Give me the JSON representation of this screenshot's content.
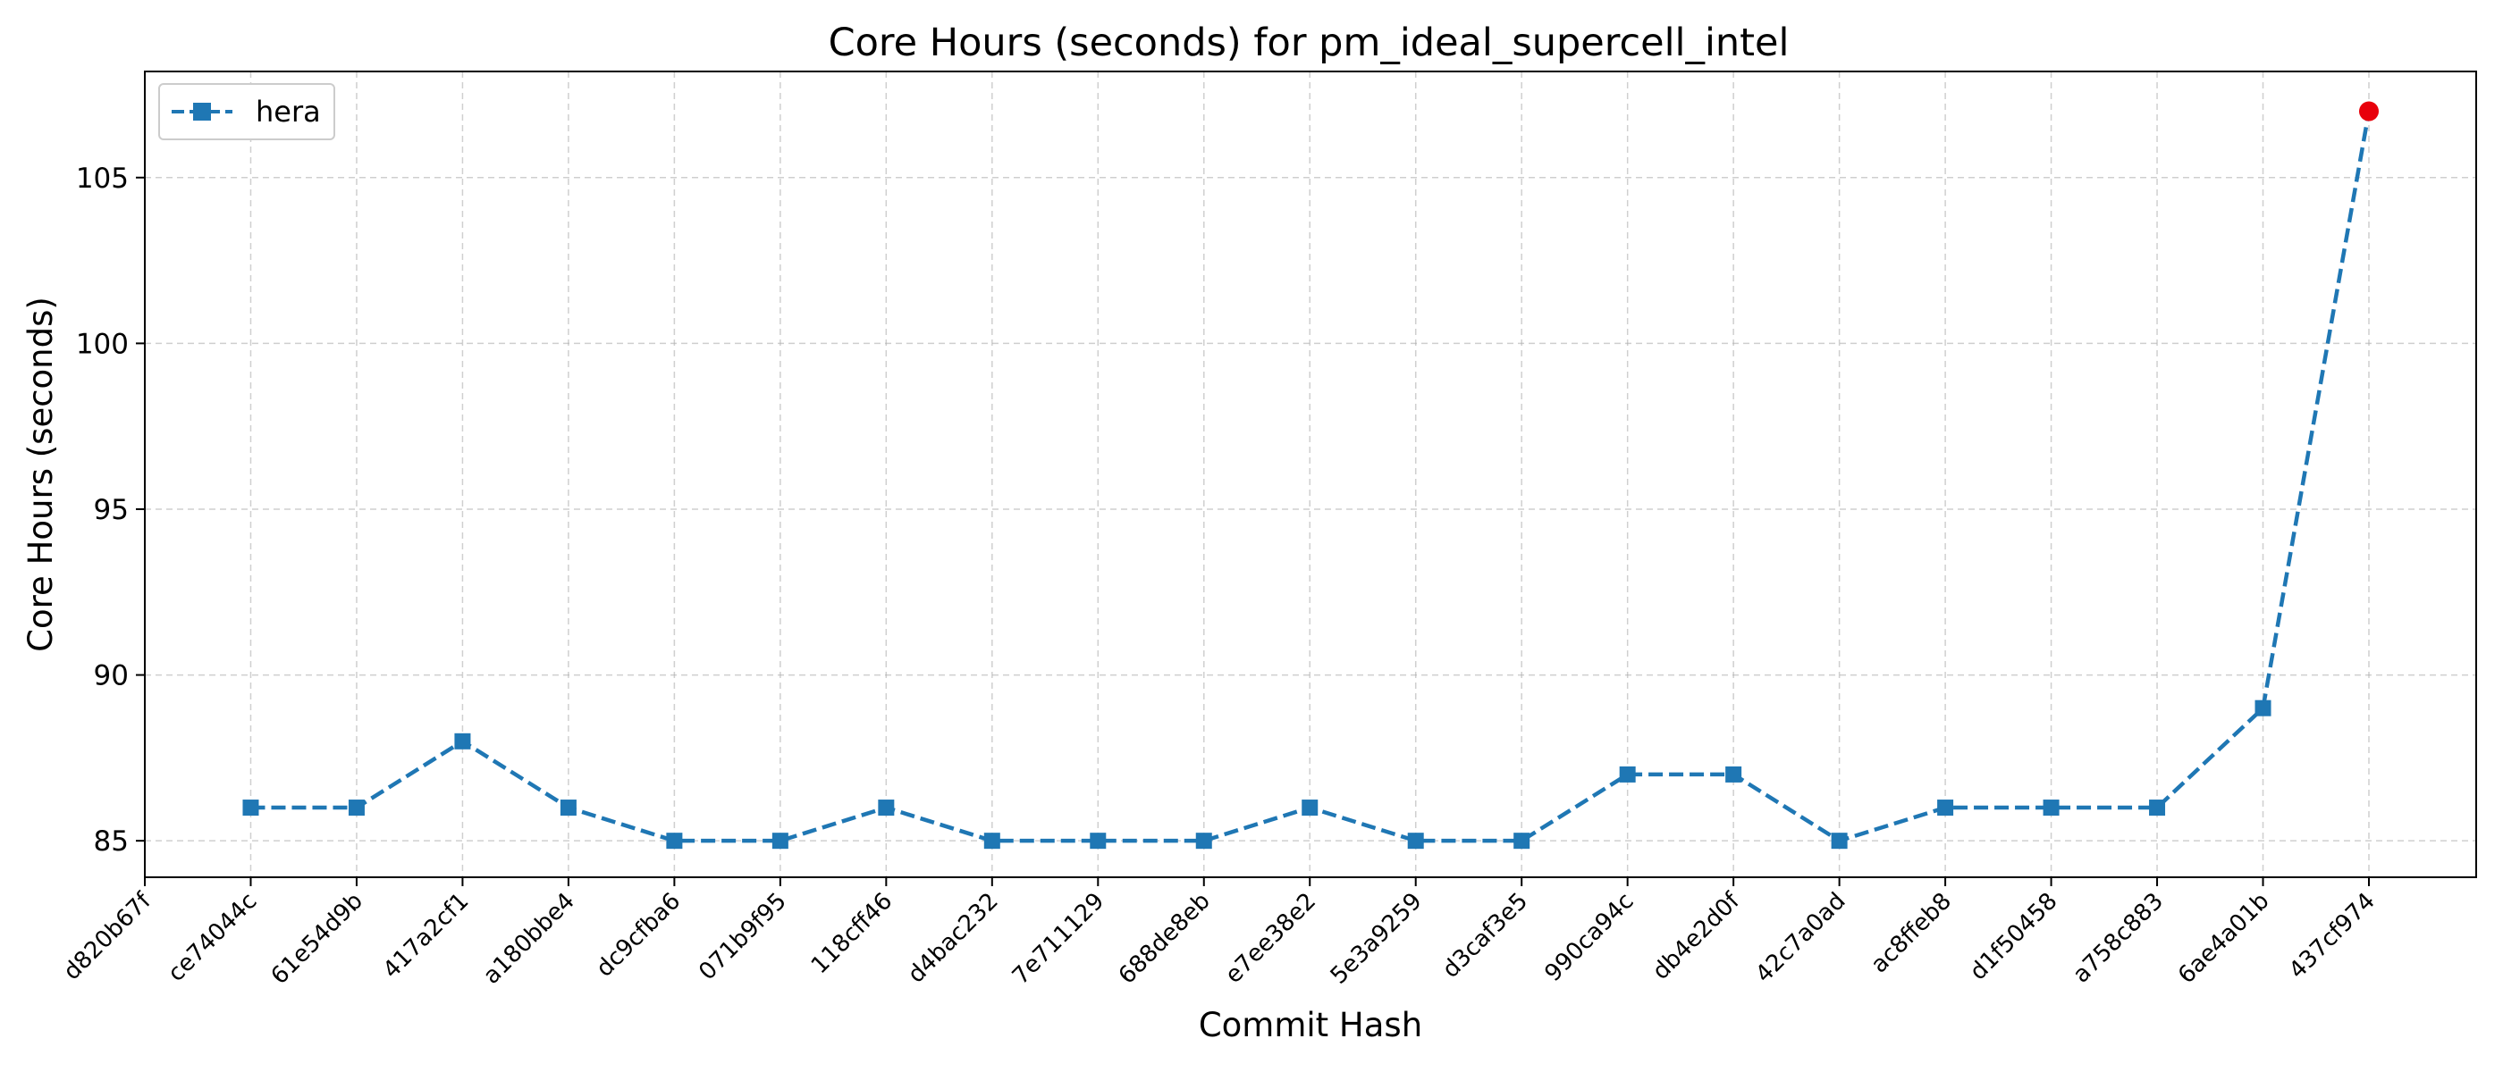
{
  "chart_data": {
    "type": "line",
    "title": "Core Hours (seconds) for pm_ideal_supercell_intel",
    "xlabel": "Commit Hash",
    "ylabel": "Core Hours (seconds)",
    "categories": [
      "d820b67f",
      "ce74044c",
      "61e54d9b",
      "417a2cf1",
      "a180bbe4",
      "dc9cfba6",
      "071b9f95",
      "118cff46",
      "d4bac232",
      "7e711129",
      "688de8eb",
      "e7ee38e2",
      "5e3a9259",
      "d3caf3e5",
      "990ca94c",
      "db4e2d0f",
      "42c7a0ad",
      "ac8ffeb8",
      "d1f50458",
      "a758c883",
      "6ae4a01b",
      "437cf974"
    ],
    "series": [
      {
        "name": "hera",
        "values": [
          null,
          86,
          86,
          88,
          86,
          85,
          85,
          86,
          85,
          85,
          85,
          86,
          85,
          85,
          87,
          87,
          85,
          86,
          86,
          86,
          89,
          107
        ],
        "color": "#1f77b4",
        "line_style": "dashed",
        "marker": "square"
      }
    ],
    "highlight": {
      "category": "437cf974",
      "value": 107,
      "color": "#e8000b",
      "marker": "circle"
    },
    "yticks": [
      85,
      90,
      95,
      100,
      105
    ],
    "ylim": [
      83.9,
      108.2
    ],
    "grid": true,
    "legend_position": "top-left"
  }
}
